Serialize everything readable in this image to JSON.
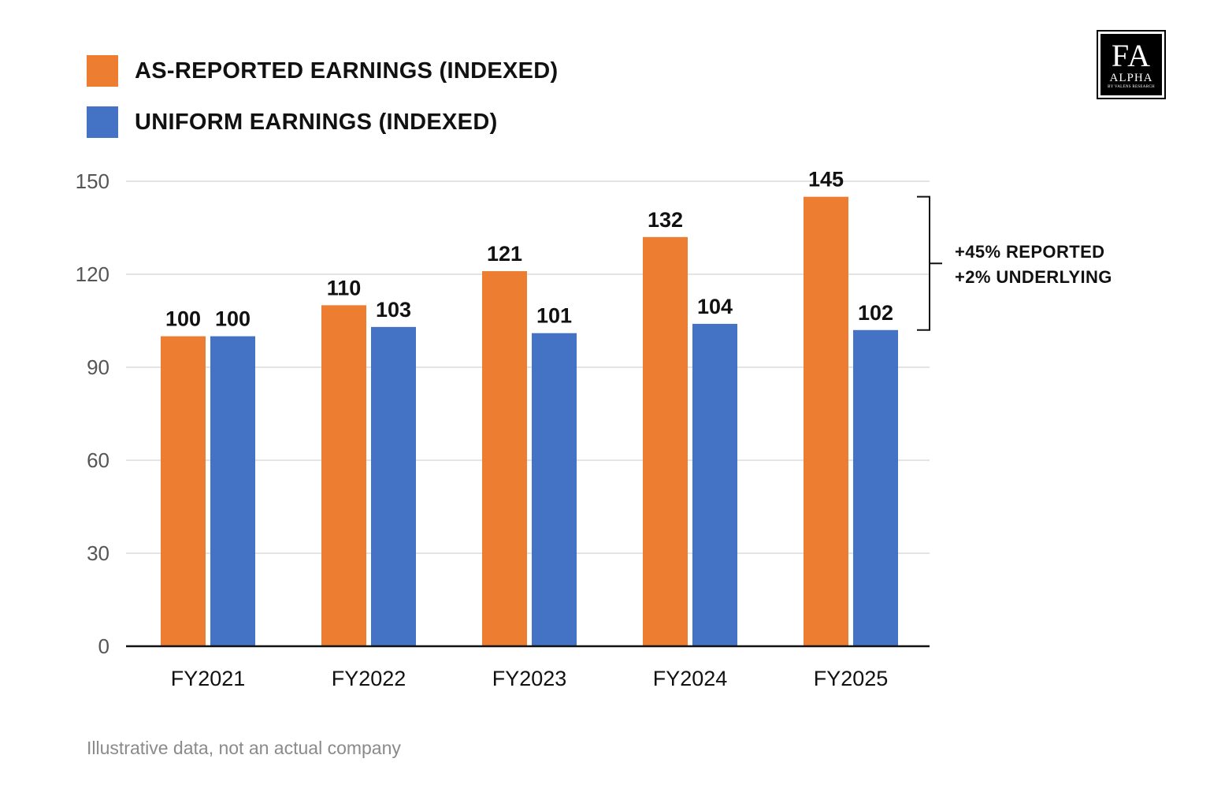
{
  "logo": {
    "mark": "FA",
    "word": "ALPHA",
    "tagline": "BY VALENS RESEARCH"
  },
  "footnote": "Illustrative data, not an actual company",
  "annotation": {
    "line1": "+45% REPORTED",
    "line2": "+2% UNDERLYING"
  },
  "chart_data": {
    "type": "bar",
    "title": "",
    "xlabel": "",
    "ylabel": "",
    "categories": [
      "FY2021",
      "FY2022",
      "FY2023",
      "FY2024",
      "FY2025"
    ],
    "series": [
      {
        "name": "AS-REPORTED EARNINGS (INDEXED)",
        "color": "#ED7D31",
        "values": [
          100,
          110,
          121,
          132,
          145
        ]
      },
      {
        "name": "UNIFORM EARNINGS (INDEXED)",
        "color": "#4472C4",
        "values": [
          100,
          103,
          101,
          104,
          102
        ]
      }
    ],
    "ylim": [
      0,
      150
    ],
    "yticks": [
      0,
      30,
      60,
      90,
      120,
      150
    ],
    "grid": true,
    "legend_position": "top-left",
    "data_labels": true
  }
}
